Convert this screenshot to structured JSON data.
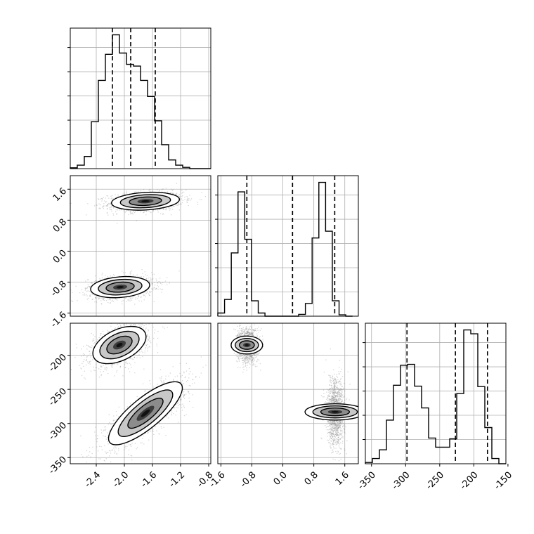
{
  "chart_data": {
    "type": "corner",
    "grid": true,
    "parameters": [
      {
        "ticks": [
          "-2.4",
          "-2.0",
          "-1.6",
          "-1.2",
          "-0.8"
        ],
        "tick_values": [
          -2.4,
          -2.0,
          -1.6,
          -1.2,
          -0.8
        ],
        "range": [
          -2.77,
          -0.77
        ]
      },
      {
        "ticks": [
          "-1.6",
          "-0.8",
          "0.0",
          "0.8",
          "1.6"
        ],
        "tick_values": [
          -1.6,
          -0.8,
          0.0,
          0.8,
          1.6
        ],
        "range": [
          -1.68,
          1.95
        ]
      },
      {
        "ticks": [
          "-350",
          "-300",
          "-250",
          "-200",
          "-150"
        ],
        "tick_values": [
          -350,
          -300,
          -250,
          -200,
          -150
        ],
        "range": [
          -359,
          -153
        ]
      }
    ],
    "histograms": [
      {
        "param": 0,
        "bin_edges": [
          -2.77,
          -2.67,
          -2.57,
          -2.47,
          -2.37,
          -2.27,
          -2.17,
          -2.07,
          -1.97,
          -1.87,
          -1.77,
          -1.67,
          -1.57,
          -1.47,
          -1.37,
          -1.27,
          -1.17,
          -1.07,
          -0.97,
          -0.87,
          -0.77
        ],
        "values": [
          0.2,
          0.8,
          2.8,
          10.8,
          20.3,
          26.3,
          30.8,
          26.6,
          24.0,
          23.6,
          20.3,
          16.6,
          11.0,
          5.5,
          2.0,
          0.8,
          0.3,
          0,
          0,
          0
        ],
        "quantiles": [
          -2.17,
          -1.91,
          -1.56
        ]
      },
      {
        "param": 1,
        "bin_edges": [
          -1.68,
          -1.506,
          -1.332,
          -1.158,
          -0.984,
          -0.81,
          -0.636,
          -0.462,
          -0.288,
          -0.114,
          0.06,
          0.234,
          0.408,
          0.582,
          0.756,
          0.93,
          1.104,
          1.278,
          1.452,
          1.626,
          1.8
        ],
        "values": [
          0.7,
          3.7,
          14.0,
          27.5,
          17.0,
          3.4,
          0.7,
          0,
          0,
          0,
          0,
          0,
          0.4,
          2.8,
          17.3,
          29.6,
          18.8,
          3.4,
          0.3,
          0
        ],
        "quantiles": [
          -0.93,
          0.25,
          1.34
        ]
      },
      {
        "param": 2,
        "bin_edges": [
          -359,
          -348.7,
          -338.4,
          -328.1,
          -317.8,
          -307.5,
          -297.2,
          -286.9,
          -276.6,
          -266.3,
          -256,
          -245.7,
          -235.4,
          -225.1,
          -214.8,
          -204.5,
          -194.2,
          -183.9,
          -173.6,
          -163.3,
          -153
        ],
        "values": [
          0.3,
          1.2,
          3.2,
          10.0,
          18.0,
          22.6,
          22.8,
          17.8,
          12.8,
          5.9,
          3.8,
          3.8,
          5.7,
          16.1,
          30.7,
          29.8,
          17.7,
          8.3,
          1.2,
          0
        ],
        "quantiles": [
          -298,
          -227,
          -180
        ]
      }
    ],
    "scatter_panels": [
      {
        "x_param": 0,
        "y_param": 1,
        "clusters": [
          {
            "cx": -1.7,
            "cy": 1.29,
            "sx": 0.23,
            "sy": 0.11,
            "rho": 0.2
          },
          {
            "cx": -2.06,
            "cy": -0.93,
            "sx": 0.2,
            "sy": 0.13,
            "rho": 0.2
          }
        ]
      },
      {
        "x_param": 0,
        "y_param": 2,
        "clusters": [
          {
            "cx": -2.07,
            "cy": -185,
            "sx": 0.18,
            "sy": 13,
            "rho": 0.45
          },
          {
            "cx": -1.7,
            "cy": -285,
            "sx": 0.25,
            "sy": 22,
            "rho": 0.8
          }
        ]
      },
      {
        "x_param": 1,
        "y_param": 2,
        "clusters": [
          {
            "cx": -0.93,
            "cy": -185,
            "sx": 0.11,
            "sy": 11,
            "rho": 0.0
          },
          {
            "cx": 1.35,
            "cy": -283,
            "sx": 0.1,
            "sy": 21,
            "rho": 0.0
          }
        ]
      }
    ]
  }
}
